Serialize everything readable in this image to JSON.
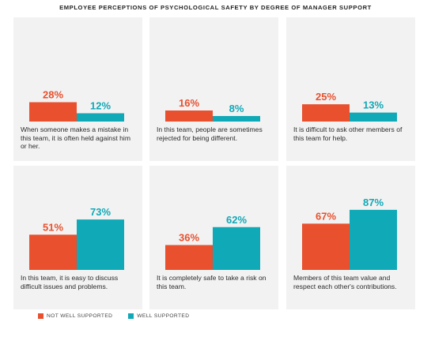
{
  "title": "EMPLOYEE PERCEPTIONS OF PSYCHOLOGICAL SAFETY BY DEGREE OF MANAGER SUPPORT",
  "colors": {
    "not_well": "#e8502e",
    "well": "#10a9b7",
    "panel_bg": "#f2f2f2"
  },
  "chart_data": {
    "type": "bar",
    "title": "EMPLOYEE PERCEPTIONS OF PSYCHOLOGICAL SAFETY BY DEGREE OF MANAGER SUPPORT",
    "series_names": [
      "NOT WELL SUPPORTED",
      "WELL SUPPORTED"
    ],
    "legend_position": "bottom-left",
    "grid": false,
    "ylim": [
      0,
      100
    ],
    "panels": [
      {
        "caption": "When someone makes a mistake in this team, it is often held against him or her.",
        "values": [
          28,
          12
        ],
        "labels": [
          "28%",
          "12%"
        ]
      },
      {
        "caption": "In this team, people are sometimes rejected for being different.",
        "values": [
          16,
          8
        ],
        "labels": [
          "16%",
          "8%"
        ]
      },
      {
        "caption": "It is difficult to ask other members of this team for help.",
        "values": [
          25,
          13
        ],
        "labels": [
          "25%",
          "13%"
        ]
      },
      {
        "caption": "In this team, it is easy to discuss difficult issues and problems.",
        "values": [
          51,
          73
        ],
        "labels": [
          "51%",
          "73%"
        ]
      },
      {
        "caption": "It is completely safe to take a risk on this team.",
        "values": [
          36,
          62
        ],
        "labels": [
          "36%",
          "62%"
        ]
      },
      {
        "caption": "Members of this team value and respect each other's contributions.",
        "values": [
          67,
          87
        ],
        "labels": [
          "67%",
          "87%"
        ]
      }
    ]
  },
  "legend": {
    "not_well_label": "NOT WELL SUPPORTED",
    "well_label": "WELL SUPPORTED"
  }
}
